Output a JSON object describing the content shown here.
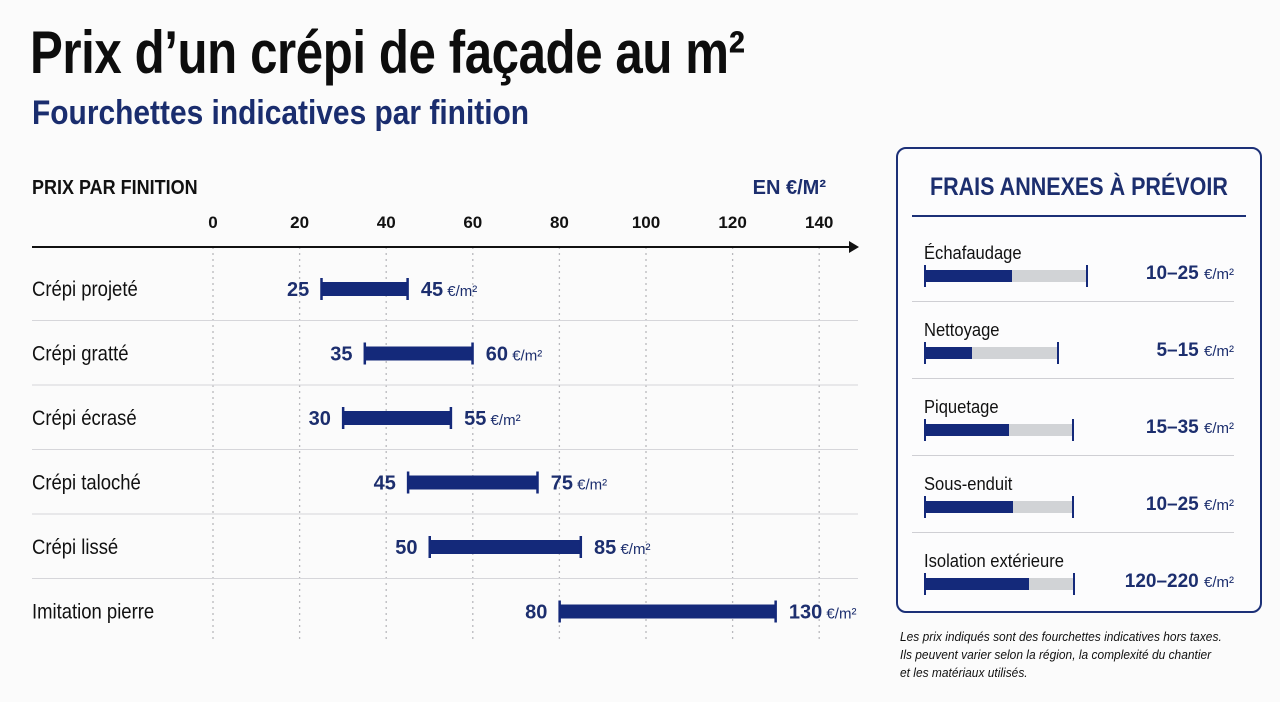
{
  "title": "Prix d’un crépi de façade au m²",
  "subtitle": "Fourchettes indicatives par finition",
  "chart_data": {
    "type": "bar",
    "title": "PRIX PAR FINITION",
    "unit_label": "EN €/M²",
    "xlim": [
      0,
      140
    ],
    "ticks": [
      0,
      20,
      40,
      60,
      80,
      100,
      120,
      140
    ],
    "unit_suffix": " €/m²",
    "grid": true,
    "categories": [
      "Crépi projeté",
      "Crépi gratté",
      "Crépi écrasé",
      "Crépi taloché",
      "Crépi lissé",
      "Imitation pierre"
    ],
    "ranges": [
      {
        "min": 25,
        "max": 45
      },
      {
        "min": 35,
        "max": 60
      },
      {
        "min": 30,
        "max": 55
      },
      {
        "min": 45,
        "max": 75
      },
      {
        "min": 50,
        "max": 85
      },
      {
        "min": 80,
        "max": 130
      }
    ],
    "bar_color": "#14297a"
  },
  "sidebar": {
    "title": "FRAIS ANNEXES À PRÉVOIR",
    "items": [
      {
        "label": "Échafaudage",
        "value": "10–25 €/m²",
        "fill": 0.54,
        "track": 0.88
      },
      {
        "label": "Nettoyage",
        "value": "5–15 €/m²",
        "fill": 0.35,
        "track": 0.72
      },
      {
        "label": "Piquetage",
        "value": "15–35 €/m²",
        "fill": 0.57,
        "track": 0.8
      },
      {
        "label": "Sous-enduit",
        "value": "10–25 €/m²",
        "fill": 0.6,
        "track": 0.8
      },
      {
        "label": "Isolation extérieure",
        "value": "120–220 €/m²",
        "fill": 0.7,
        "track": 0.81
      }
    ]
  },
  "note": {
    "lines": [
      "Les prix indiqués sont des fourchettes indicatives hors taxes.",
      "Ils peuvent varier selon la région, la complexité du chantier",
      "et les matériaux utilisés."
    ]
  },
  "colors": {
    "accent": "#14297a",
    "track": "#d1d3d6",
    "subtitle": "#1a2d6e"
  }
}
